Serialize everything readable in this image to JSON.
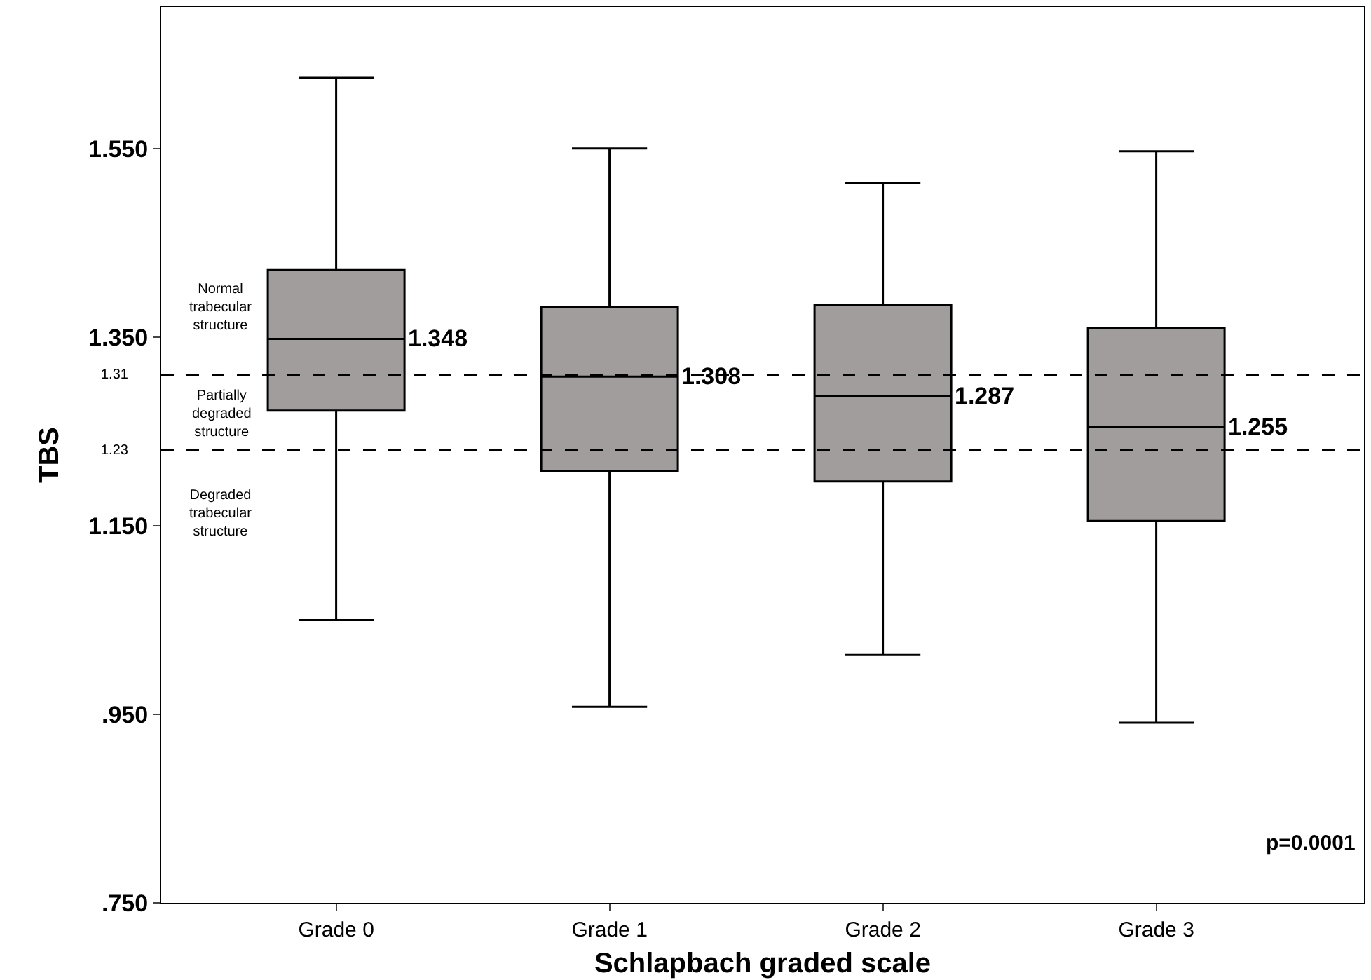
{
  "chart_data": {
    "type": "box",
    "xlabel": "Schlapbach graded scale",
    "ylabel": "TBS",
    "categories": [
      "Grade 0",
      "Grade 1",
      "Grade 2",
      "Grade 3"
    ],
    "boxes": [
      {
        "low": 1.05,
        "q1": 1.272,
        "median": 1.348,
        "q3": 1.421,
        "high": 1.625
      },
      {
        "low": 0.958,
        "q1": 1.208,
        "median": 1.308,
        "q3": 1.382,
        "high": 1.55
      },
      {
        "low": 1.013,
        "q1": 1.197,
        "median": 1.287,
        "q3": 1.384,
        "high": 1.513
      },
      {
        "low": 0.941,
        "q1": 1.155,
        "median": 1.255,
        "q3": 1.36,
        "high": 1.547
      }
    ],
    "color": "#a19d9d",
    "ylim": [
      0.75,
      1.7
    ],
    "yticks": [
      {
        "value": 0.75,
        "label": ".750"
      },
      {
        "value": 0.95,
        "label": ".950"
      },
      {
        "value": 1.15,
        "label": "1.150"
      },
      {
        "value": 1.35,
        "label": "1.350"
      },
      {
        "value": 1.55,
        "label": "1.550"
      }
    ],
    "ref_lines": [
      {
        "axis": "y",
        "value": 1.31,
        "label": "1.31",
        "line_style": "dashed",
        "color": "#000000"
      },
      {
        "axis": "y",
        "value": 1.23,
        "label": "1.23",
        "line_style": "dashed",
        "color": "#000000"
      }
    ],
    "annotations": [
      "1.348",
      "1.308",
      "1.287",
      "1.255",
      "Normal\ntrabecular\nstructure",
      "Partially\ndegraded\nstructure",
      "Degraded\ntrabecular\nstructure",
      "p=0.0001"
    ]
  }
}
